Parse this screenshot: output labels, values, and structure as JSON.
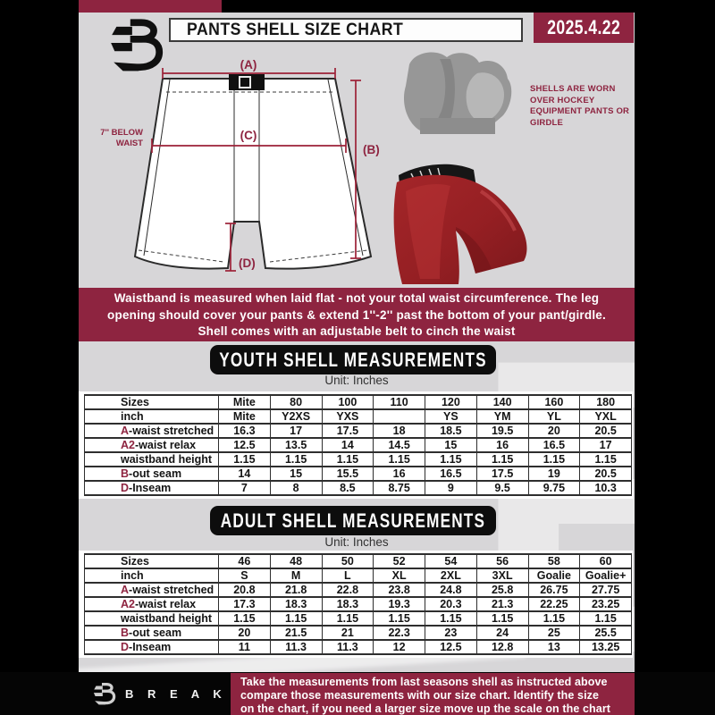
{
  "colors": {
    "maroon": "#8e2440",
    "accent_red": "#9c2137",
    "page_bg": "#d7d6d8",
    "banner_black": "#0d0d0d"
  },
  "header": {
    "title": "PANTS SHELL SIZE CHART",
    "date": "2025.4.22"
  },
  "brand": {
    "name": "B R E A K A W A Y"
  },
  "diagram": {
    "label_a": "(A)",
    "label_b": "(B)",
    "label_c": "(C)",
    "label_d": "(D)",
    "below_waist_line1": "7'' BELOW",
    "below_waist_line2": "WAIST",
    "note": "SHELLS ARE WORN OVER HOCKEY EQUIPMENT PANTS OR GIRDLE"
  },
  "info_banner": {
    "line1": "Waistband is measured when laid flat - not your total waist circumference. The leg",
    "line2": "opening should cover your pants & extend 1''-2'' past the bottom of your pant/girdle.",
    "line3": "Shell comes with an adjustable belt to cinch the waist"
  },
  "sections": {
    "youth": {
      "title": "YOUTH SHELL MEASUREMENTS",
      "unit": "Unit: Inches",
      "rows": [
        {
          "prefix": "",
          "label": "Sizes",
          "values": [
            "Mite",
            "80",
            "100",
            "110",
            "120",
            "140",
            "160",
            "180"
          ]
        },
        {
          "prefix": "",
          "label": "inch",
          "values": [
            "Mite",
            "Y2XS",
            "YXS",
            "",
            "YS",
            "YM",
            "YL",
            "YXL"
          ]
        },
        {
          "prefix": "A",
          "label": "-waist stretched",
          "values": [
            "16.3",
            "17",
            "17.5",
            "18",
            "18.5",
            "19.5",
            "20",
            "20.5"
          ]
        },
        {
          "prefix": "A2",
          "label": "-waist relax",
          "values": [
            "12.5",
            "13.5",
            "14",
            "14.5",
            "15",
            "16",
            "16.5",
            "17"
          ]
        },
        {
          "prefix": "",
          "label": "waistband height",
          "values": [
            "1.15",
            "1.15",
            "1.15",
            "1.15",
            "1.15",
            "1.15",
            "1.15",
            "1.15"
          ]
        },
        {
          "prefix": "B",
          "label": "-out seam",
          "values": [
            "14",
            "15",
            "15.5",
            "16",
            "16.5",
            "17.5",
            "19",
            "20.5"
          ]
        },
        {
          "prefix": "D",
          "label": "-Inseam",
          "values": [
            "7",
            "8",
            "8.5",
            "8.75",
            "9",
            "9.5",
            "9.75",
            "10.3"
          ]
        }
      ]
    },
    "adult": {
      "title": "ADULT SHELL MEASUREMENTS",
      "unit": "Unit: Inches",
      "rows": [
        {
          "prefix": "",
          "label": "Sizes",
          "values": [
            "46",
            "48",
            "50",
            "52",
            "54",
            "56",
            "58",
            "60"
          ]
        },
        {
          "prefix": "",
          "label": "inch",
          "values": [
            "S",
            "M",
            "L",
            "XL",
            "2XL",
            "3XL",
            "Goalie",
            "Goalie+"
          ]
        },
        {
          "prefix": "A",
          "label": "-waist stretched",
          "values": [
            "20.8",
            "21.8",
            "22.8",
            "23.8",
            "24.8",
            "25.8",
            "26.75",
            "27.75"
          ]
        },
        {
          "prefix": "A2",
          "label": "-waist relax",
          "values": [
            "17.3",
            "18.3",
            "18.3",
            "19.3",
            "20.3",
            "21.3",
            "22.25",
            "23.25"
          ]
        },
        {
          "prefix": "",
          "label": "waistband height",
          "values": [
            "1.15",
            "1.15",
            "1.15",
            "1.15",
            "1.15",
            "1.15",
            "1.15",
            "1.15"
          ]
        },
        {
          "prefix": "B",
          "label": "-out seam",
          "values": [
            "20",
            "21.5",
            "21",
            "22.3",
            "23",
            "24",
            "25",
            "25.5"
          ]
        },
        {
          "prefix": "D",
          "label": "-Inseam",
          "values": [
            "11",
            "11.3",
            "11.3",
            "12",
            "12.5",
            "12.8",
            "13",
            "13.25"
          ]
        }
      ]
    }
  },
  "footer": {
    "line1": "Take the measurements from last seasons shell as instructed above",
    "line2": "compare those measurements  with our size chart. Identify the size",
    "line3": "on the chart, if you need a larger size move up the scale on the chart"
  },
  "watermark": "B"
}
